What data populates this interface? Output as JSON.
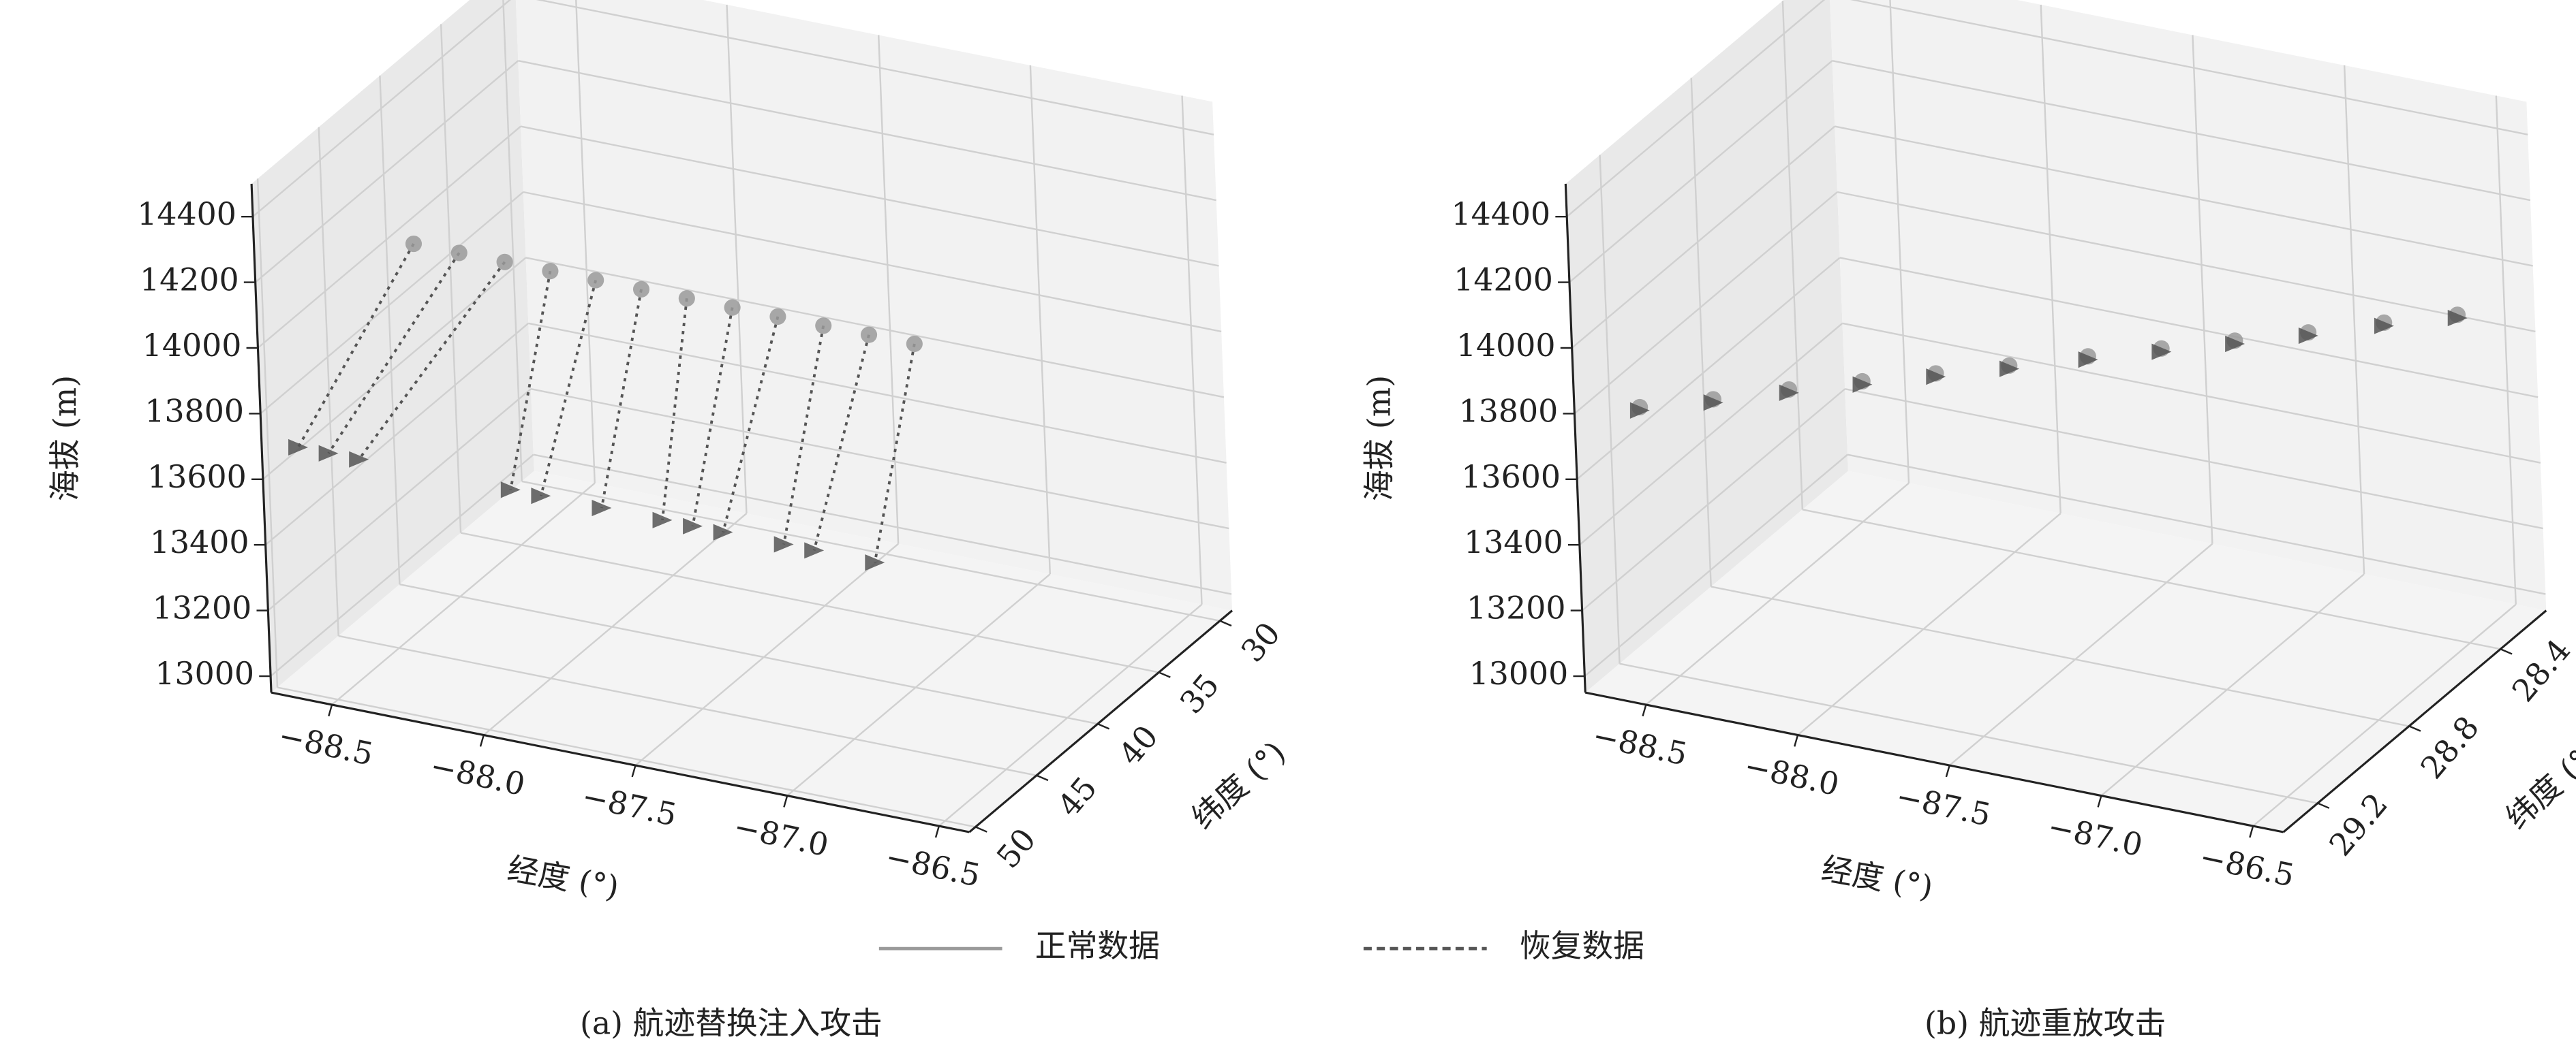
{
  "chart_data": [
    {
      "type": "scatter3d",
      "caption": "(a) 航迹替换注入攻击",
      "xlabel": "经度 (°)",
      "ylabel": "纬度 (°)",
      "zlabel": "海拔 (m)",
      "grid": true,
      "connect": true,
      "xlim": [
        -88.7,
        -86.4
      ],
      "ylim": [
        50.5,
        29
      ],
      "zlim": [
        12950,
        14500
      ],
      "xticks": [
        {
          "value": -88.5,
          "label": "−88.5"
        },
        {
          "value": -88,
          "label": "−88.0"
        },
        {
          "value": -87.5,
          "label": "−87.5"
        },
        {
          "value": -87,
          "label": "−87.0"
        },
        {
          "value": -86.5,
          "label": "−86.5"
        }
      ],
      "yticks": [
        50,
        45,
        40,
        35,
        30
      ],
      "zticks": [
        13000,
        13200,
        13400,
        13600,
        13800,
        14000,
        14200,
        14400
      ],
      "series": [
        {
          "name": "正常数据",
          "color": "#9a9a9a",
          "marker": "circle",
          "linestyle": "solid",
          "x": [
            -88.4,
            -88.25,
            -88.1,
            -87.95,
            -87.8,
            -87.65,
            -87.5,
            -87.35,
            -87.2,
            -87.05,
            -86.9,
            -86.75
          ],
          "y": [
            45,
            45,
            45,
            45,
            45,
            45,
            45,
            45,
            45,
            45,
            45,
            45
          ],
          "z": [
            14200,
            14200,
            14200,
            14200,
            14200,
            14200,
            14200,
            14200,
            14200,
            14200,
            14200,
            14200
          ]
        },
        {
          "name": "恢复数据",
          "color": "#555555",
          "marker": "triangle",
          "linestyle": "dashed",
          "x": [
            -88.6,
            -88.5,
            -88.4,
            -87.9,
            -87.8,
            -87.6,
            -87.4,
            -87.3,
            -87.2,
            -87.0,
            -86.9,
            -86.7
          ],
          "y": [
            50,
            50,
            50,
            50,
            50,
            50,
            50,
            50,
            50,
            50,
            50,
            50
          ],
          "z": [
            13700,
            13700,
            13700,
            13700,
            13700,
            13700,
            13700,
            13700,
            13700,
            13700,
            13700,
            13700
          ]
        }
      ]
    },
    {
      "type": "scatter3d",
      "caption": "(b) 航迹重放攻击",
      "xlabel": "经度 (°)",
      "ylabel": "纬度 (°)",
      "zlabel": "海拔 (m)",
      "grid": true,
      "connect": false,
      "xlim": [
        -88.7,
        -86.4
      ],
      "ylim": [
        29.35,
        28.2
      ],
      "zlim": [
        12950,
        14500
      ],
      "xticks": [
        {
          "value": -88.5,
          "label": "−88.5"
        },
        {
          "value": -88,
          "label": "−88.0"
        },
        {
          "value": -87.5,
          "label": "−87.5"
        },
        {
          "value": -87,
          "label": "−87.0"
        },
        {
          "value": -86.5,
          "label": "−86.5"
        }
      ],
      "yticks": [
        29.2,
        28.8,
        28.4
      ],
      "zticks": [
        13000,
        13200,
        13400,
        13600,
        13800,
        14000,
        14200,
        14400
      ],
      "series": [
        {
          "color": "#9a9a9a",
          "marker": "circle",
          "x": [
            -88.6,
            -88.41,
            -88.22,
            -88.03,
            -87.84,
            -87.65,
            -87.45,
            -87.26,
            -87.07,
            -86.88,
            -86.69,
            -86.5
          ],
          "y": [
            29.2,
            29.13,
            29.05,
            28.98,
            28.91,
            28.84,
            28.76,
            28.69,
            28.62,
            28.55,
            28.47,
            28.4
          ],
          "z": [
            13750,
            13768,
            13786,
            13805,
            13823,
            13841,
            13859,
            13877,
            13895,
            13914,
            13932,
            13950
          ]
        },
        {
          "color": "#555555",
          "marker": "triangle",
          "x": [
            -88.6,
            -88.41,
            -88.22,
            -88.03,
            -87.84,
            -87.65,
            -87.45,
            -87.26,
            -87.07,
            -86.88,
            -86.69,
            -86.5
          ],
          "y": [
            29.2,
            29.13,
            29.05,
            28.98,
            28.91,
            28.84,
            28.76,
            28.69,
            28.62,
            28.55,
            28.47,
            28.4
          ],
          "z": [
            13740,
            13758,
            13776,
            13795,
            13813,
            13831,
            13849,
            13867,
            13885,
            13904,
            13922,
            13940
          ]
        }
      ]
    }
  ]
}
